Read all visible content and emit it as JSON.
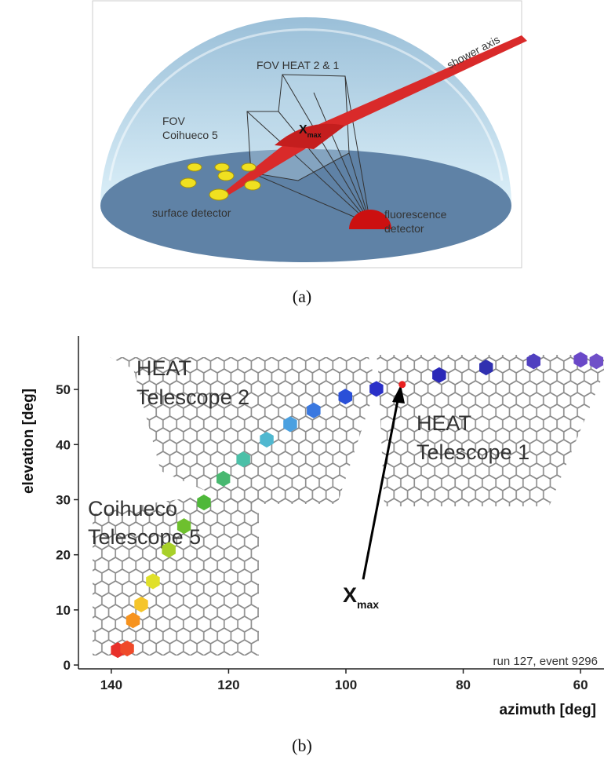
{
  "panel_a": {
    "labels": {
      "shower_axis": "shower axis",
      "fov_heat": "FOV HEAT 2 & 1",
      "fov": "FOV",
      "fov_coihueco": "Coihueco 5",
      "xmax": "X",
      "xmax_sub": "max",
      "surface_detector": "surface detector",
      "fluorescence": "fluorescence",
      "detector": "detector"
    },
    "caption": "(a)"
  },
  "chart_data": {
    "type": "scatter",
    "caption": "(b)",
    "x_label": "azimuth  [deg]",
    "y_label": "elevation  [deg]",
    "xlim": [
      145.6,
      56.0
    ],
    "ylim": [
      -0.7,
      59.7
    ],
    "xticks": [
      140,
      120,
      100,
      80,
      60
    ],
    "yticks": [
      0,
      10,
      20,
      30,
      40,
      50
    ],
    "x": [
      138.9,
      137.3,
      136.3,
      134.9,
      132.9,
      130.2,
      127.6,
      124.2,
      120.9,
      117.5,
      113.5,
      109.5,
      105.5,
      100.1,
      94.8,
      84.1,
      76.1,
      68.0,
      60.0,
      57.3
    ],
    "y": [
      2.7,
      3.0,
      8.1,
      11.0,
      15.2,
      20.9,
      25.2,
      29.5,
      33.8,
      37.3,
      40.9,
      43.7,
      46.2,
      48.7,
      50.1,
      52.6,
      54.0,
      55.1,
      55.4,
      55.1
    ],
    "colors": [
      "#e8302a",
      "#ef4a2a",
      "#f7931e",
      "#f5c52a",
      "#e0e02a",
      "#a8d02a",
      "#6ec02e",
      "#4fb83a",
      "#48b870",
      "#4cc0a8",
      "#50b8d0",
      "#4aa0e0",
      "#3a78e0",
      "#2a50d8",
      "#2a30c8",
      "#2a28b8",
      "#3030b0",
      "#5040c0",
      "#6a48c8",
      "#7050c8"
    ],
    "xmax_point": {
      "x": 90.4,
      "y": 50.9,
      "color": "#e82020"
    },
    "annotations": {
      "heat2_a": "HEAT",
      "heat2_b": "Telescope 2",
      "heat1_a": "HEAT",
      "heat1_b": "Telescope 1",
      "coihueco_a": "Coihueco",
      "coihueco_b": "Telescope 5",
      "xmax": "X",
      "xmax_sub": "max",
      "run": "run 127, event 9296"
    }
  }
}
